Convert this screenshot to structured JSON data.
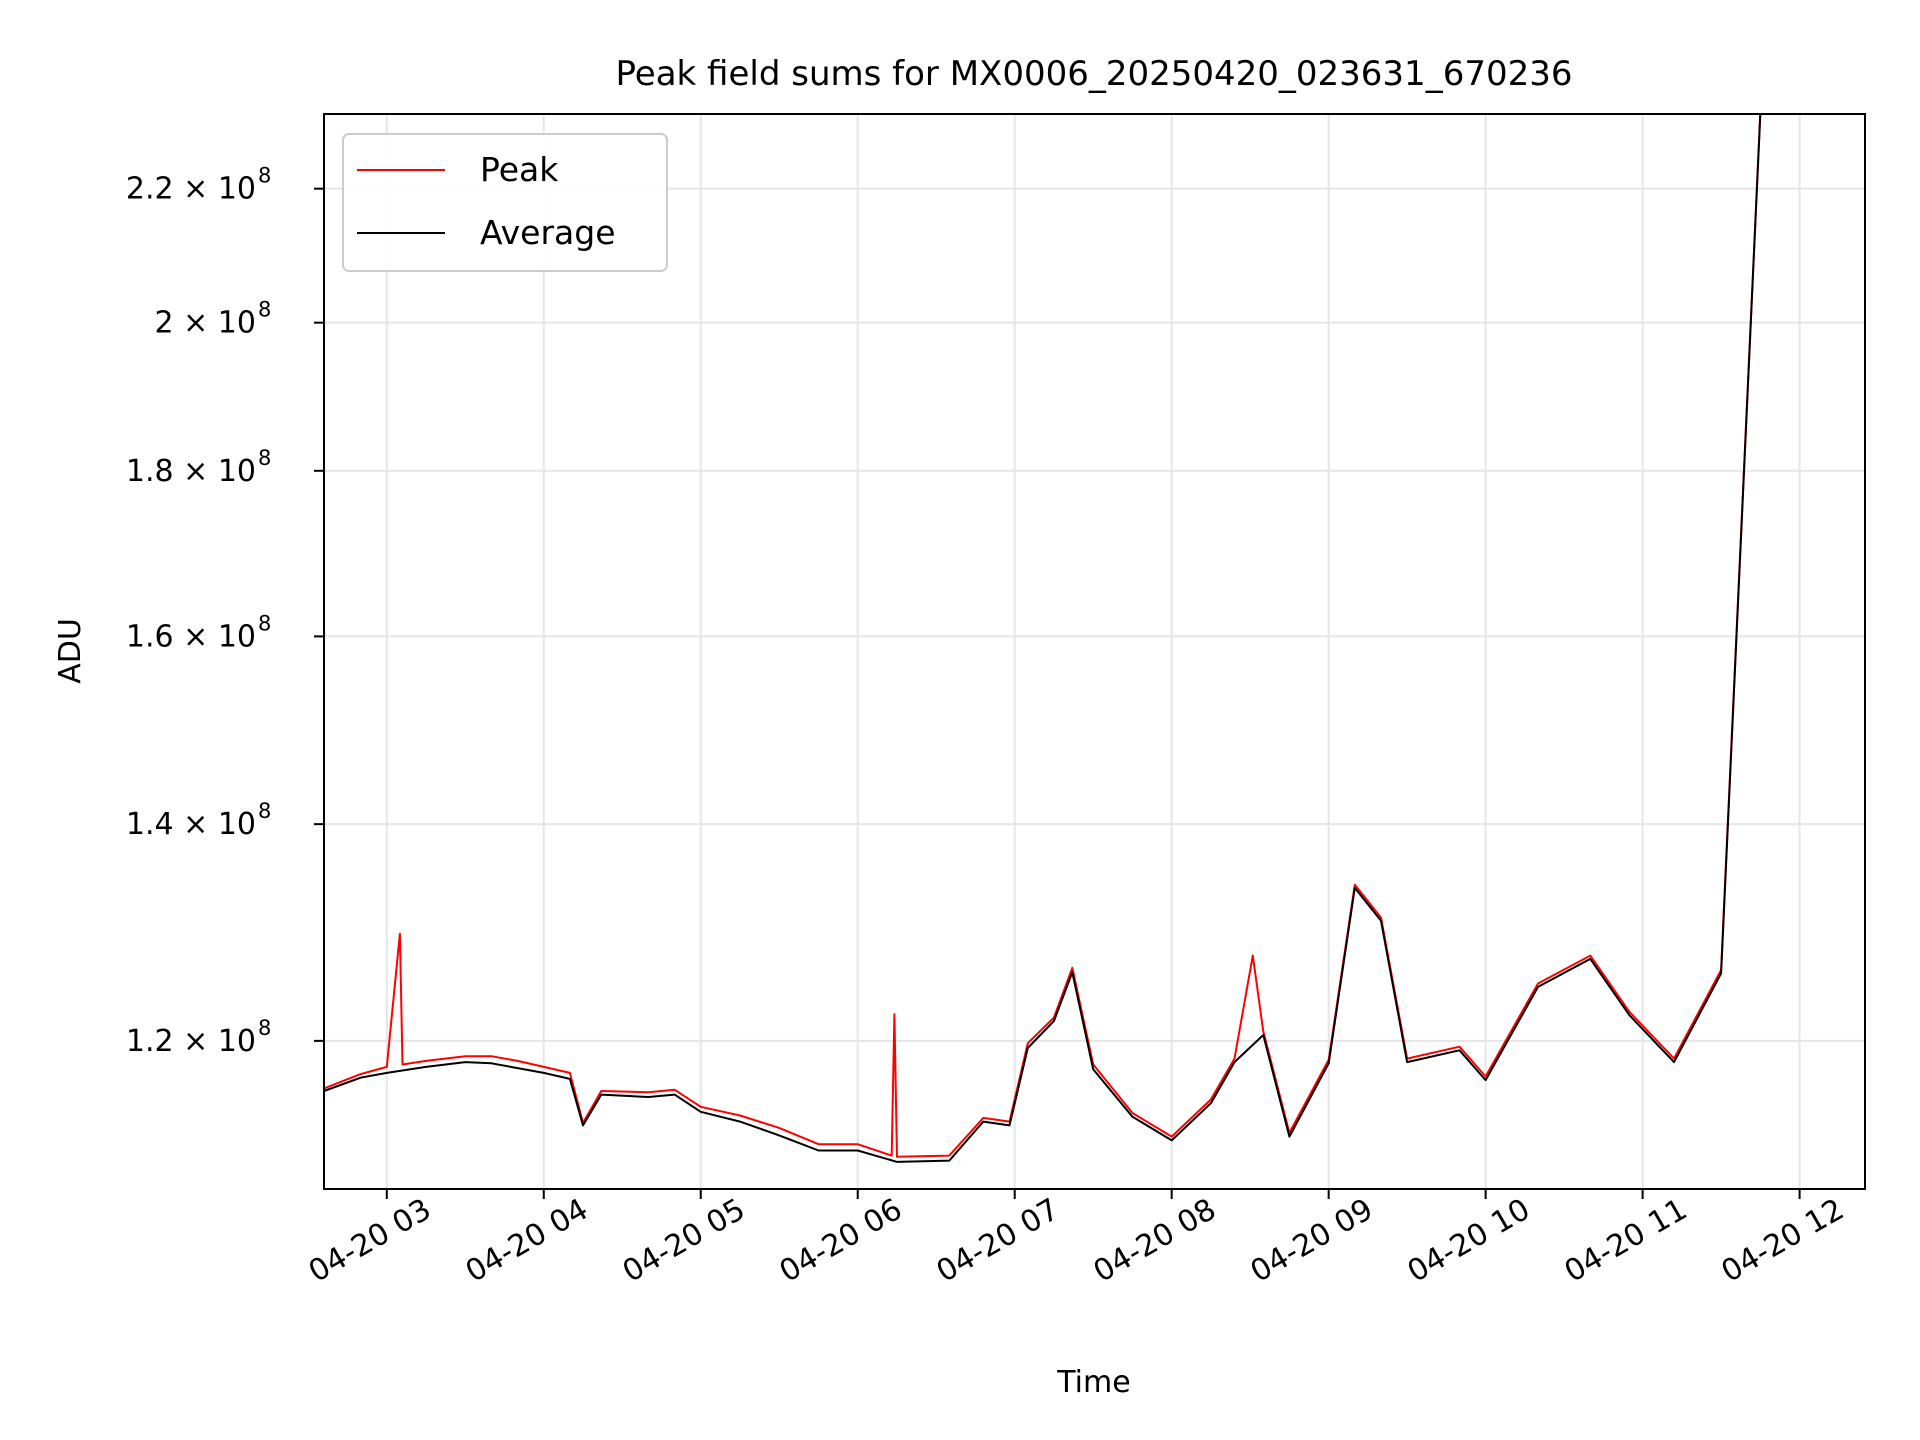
{
  "chart_data": {
    "type": "line",
    "title": "Peak field sums for MX0006_20250420_023631_670236",
    "xlabel": "Time",
    "ylabel": "ADU",
    "y_scale": "log",
    "x_range": [
      "2025-04-20T02:36",
      "2025-04-20T12:25"
    ],
    "ylim": [
      108000000,
      232000000
    ],
    "x_ticks": [
      {
        "t": "2025-04-20T03:00",
        "label": "04-20 03"
      },
      {
        "t": "2025-04-20T04:00",
        "label": "04-20 04"
      },
      {
        "t": "2025-04-20T05:00",
        "label": "04-20 05"
      },
      {
        "t": "2025-04-20T06:00",
        "label": "04-20 06"
      },
      {
        "t": "2025-04-20T07:00",
        "label": "04-20 07"
      },
      {
        "t": "2025-04-20T08:00",
        "label": "04-20 08"
      },
      {
        "t": "2025-04-20T09:00",
        "label": "04-20 09"
      },
      {
        "t": "2025-04-20T10:00",
        "label": "04-20 10"
      },
      {
        "t": "2025-04-20T11:00",
        "label": "04-20 11"
      },
      {
        "t": "2025-04-20T12:00",
        "label": "04-20 12"
      }
    ],
    "y_ticks": [
      {
        "value": 120000000,
        "mantissa": "1.2",
        "exp": "8"
      },
      {
        "value": 140000000,
        "mantissa": "1.4",
        "exp": "8"
      },
      {
        "value": 160000000,
        "mantissa": "1.6",
        "exp": "8"
      },
      {
        "value": 180000000,
        "mantissa": "1.8",
        "exp": "8"
      },
      {
        "value": 200000000,
        "mantissa": "2",
        "exp": "8"
      },
      {
        "value": 220000000,
        "mantissa": "2.2",
        "exp": "8"
      }
    ],
    "grid": true,
    "legend_position": "top-left",
    "series": [
      {
        "name": "Peak",
        "color": "#ff0000",
        "points": [
          [
            "2025-04-20T02:36",
            116000000
          ],
          [
            "2025-04-20T02:50",
            117200000
          ],
          [
            "2025-04-20T03:00",
            117800000
          ],
          [
            "2025-04-20T03:05",
            129500000
          ],
          [
            "2025-04-20T03:06",
            118000000
          ],
          [
            "2025-04-20T03:15",
            118300000
          ],
          [
            "2025-04-20T03:30",
            118700000
          ],
          [
            "2025-04-20T03:40",
            118700000
          ],
          [
            "2025-04-20T03:50",
            118300000
          ],
          [
            "2025-04-20T04:00",
            117800000
          ],
          [
            "2025-04-20T04:10",
            117300000
          ],
          [
            "2025-04-20T04:15",
            113200000
          ],
          [
            "2025-04-20T04:22",
            115800000
          ],
          [
            "2025-04-20T04:40",
            115700000
          ],
          [
            "2025-04-20T04:50",
            115900000
          ],
          [
            "2025-04-20T05:00",
            114500000
          ],
          [
            "2025-04-20T05:15",
            113800000
          ],
          [
            "2025-04-20T05:30",
            112800000
          ],
          [
            "2025-04-20T05:45",
            111500000
          ],
          [
            "2025-04-20T06:00",
            111500000
          ],
          [
            "2025-04-20T06:13",
            110600000
          ],
          [
            "2025-04-20T06:14",
            122300000
          ],
          [
            "2025-04-20T06:15",
            110500000
          ],
          [
            "2025-04-20T06:35",
            110600000
          ],
          [
            "2025-04-20T06:48",
            113600000
          ],
          [
            "2025-04-20T06:58",
            113300000
          ],
          [
            "2025-04-20T07:05",
            119800000
          ],
          [
            "2025-04-20T07:15",
            122000000
          ],
          [
            "2025-04-20T07:22",
            126400000
          ],
          [
            "2025-04-20T07:30",
            118000000
          ],
          [
            "2025-04-20T07:45",
            114000000
          ],
          [
            "2025-04-20T08:00",
            112100000
          ],
          [
            "2025-04-20T08:15",
            115100000
          ],
          [
            "2025-04-20T08:24",
            118500000
          ],
          [
            "2025-04-20T08:31",
            127500000
          ],
          [
            "2025-04-20T08:35",
            120800000
          ],
          [
            "2025-04-20T08:45",
            112400000
          ],
          [
            "2025-04-20T09:00",
            118400000
          ],
          [
            "2025-04-20T09:10",
            134100000
          ],
          [
            "2025-04-20T09:20",
            131000000
          ],
          [
            "2025-04-20T09:30",
            118500000
          ],
          [
            "2025-04-20T09:50",
            119500000
          ],
          [
            "2025-04-20T10:00",
            117000000
          ],
          [
            "2025-04-20T10:20",
            125000000
          ],
          [
            "2025-04-20T10:40",
            127500000
          ],
          [
            "2025-04-20T10:55",
            122500000
          ],
          [
            "2025-04-20T11:12",
            118500000
          ],
          [
            "2025-04-20T11:30",
            126200000
          ],
          [
            "2025-04-20T11:45",
            232000000
          ]
        ]
      },
      {
        "name": "Average",
        "color": "#000000",
        "points": [
          [
            "2025-04-20T02:36",
            115800000
          ],
          [
            "2025-04-20T02:50",
            116900000
          ],
          [
            "2025-04-20T03:00",
            117300000
          ],
          [
            "2025-04-20T03:15",
            117800000
          ],
          [
            "2025-04-20T03:30",
            118200000
          ],
          [
            "2025-04-20T03:40",
            118100000
          ],
          [
            "2025-04-20T03:50",
            117700000
          ],
          [
            "2025-04-20T04:00",
            117300000
          ],
          [
            "2025-04-20T04:10",
            116800000
          ],
          [
            "2025-04-20T04:15",
            113000000
          ],
          [
            "2025-04-20T04:22",
            115500000
          ],
          [
            "2025-04-20T04:40",
            115300000
          ],
          [
            "2025-04-20T04:50",
            115500000
          ],
          [
            "2025-04-20T05:00",
            114100000
          ],
          [
            "2025-04-20T05:15",
            113300000
          ],
          [
            "2025-04-20T05:30",
            112200000
          ],
          [
            "2025-04-20T05:45",
            111000000
          ],
          [
            "2025-04-20T06:00",
            111000000
          ],
          [
            "2025-04-20T06:15",
            110100000
          ],
          [
            "2025-04-20T06:35",
            110200000
          ],
          [
            "2025-04-20T06:48",
            113300000
          ],
          [
            "2025-04-20T06:58",
            113000000
          ],
          [
            "2025-04-20T07:05",
            119400000
          ],
          [
            "2025-04-20T07:15",
            121700000
          ],
          [
            "2025-04-20T07:22",
            126000000
          ],
          [
            "2025-04-20T07:30",
            117600000
          ],
          [
            "2025-04-20T07:45",
            113700000
          ],
          [
            "2025-04-20T08:00",
            111800000
          ],
          [
            "2025-04-20T08:15",
            114800000
          ],
          [
            "2025-04-20T08:24",
            118200000
          ],
          [
            "2025-04-20T08:35",
            120500000
          ],
          [
            "2025-04-20T08:45",
            112100000
          ],
          [
            "2025-04-20T09:00",
            118100000
          ],
          [
            "2025-04-20T09:10",
            133800000
          ],
          [
            "2025-04-20T09:20",
            130700000
          ],
          [
            "2025-04-20T09:30",
            118200000
          ],
          [
            "2025-04-20T09:50",
            119200000
          ],
          [
            "2025-04-20T10:00",
            116700000
          ],
          [
            "2025-04-20T10:20",
            124700000
          ],
          [
            "2025-04-20T10:40",
            127200000
          ],
          [
            "2025-04-20T10:55",
            122200000
          ],
          [
            "2025-04-20T11:12",
            118200000
          ],
          [
            "2025-04-20T11:30",
            125900000
          ],
          [
            "2025-04-20T11:45",
            232000000
          ]
        ]
      }
    ]
  }
}
